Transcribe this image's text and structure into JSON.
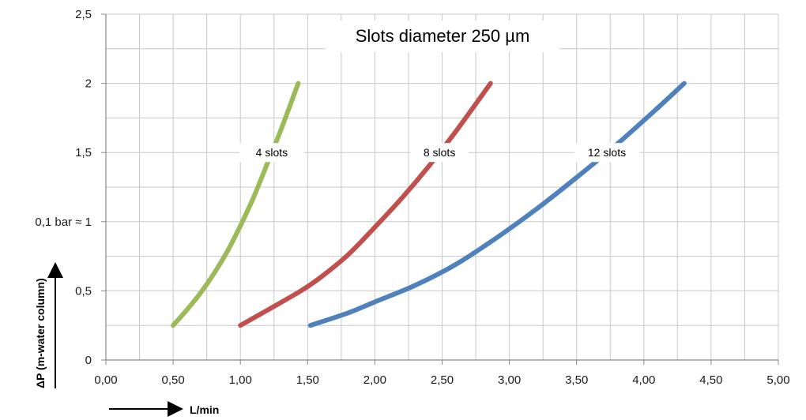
{
  "chart_data": {
    "type": "line",
    "title": "Slots diameter 250 µm",
    "xlabel": "L/min",
    "ylabel": "ΔP  (m-water column)",
    "xlim": [
      0,
      5
    ],
    "ylim": [
      0,
      2.5
    ],
    "x_ticks": [
      "0,00",
      "0,50",
      "1,00",
      "1,50",
      "2,00",
      "2,50",
      "3,00",
      "3,50",
      "4,00",
      "4,50",
      "5,00"
    ],
    "y_ticks": [
      "0",
      "0,5",
      "0,1 bar ≈ 1",
      "1,5",
      "2",
      "2,5"
    ],
    "grid": true,
    "series": [
      {
        "name": "4  slots",
        "color": "#9BBB59",
        "points": [
          [
            0.5,
            0.25
          ],
          [
            0.6,
            0.36
          ],
          [
            0.7,
            0.48
          ],
          [
            0.8,
            0.62
          ],
          [
            0.9,
            0.78
          ],
          [
            1.0,
            0.97
          ],
          [
            1.1,
            1.18
          ],
          [
            1.2,
            1.42
          ],
          [
            1.3,
            1.66
          ],
          [
            1.43,
            2.0
          ]
        ]
      },
      {
        "name": "8 slots",
        "color": "#C0504D",
        "points": [
          [
            1.0,
            0.25
          ],
          [
            1.2,
            0.36
          ],
          [
            1.45,
            0.5
          ],
          [
            1.6,
            0.6
          ],
          [
            1.8,
            0.76
          ],
          [
            2.0,
            0.96
          ],
          [
            2.2,
            1.17
          ],
          [
            2.4,
            1.4
          ],
          [
            2.6,
            1.65
          ],
          [
            2.86,
            2.0
          ]
        ]
      },
      {
        "name": "12 slots",
        "color": "#4F81BD",
        "points": [
          [
            1.52,
            0.25
          ],
          [
            1.8,
            0.34
          ],
          [
            2.0,
            0.42
          ],
          [
            2.3,
            0.54
          ],
          [
            2.6,
            0.69
          ],
          [
            2.9,
            0.88
          ],
          [
            3.2,
            1.09
          ],
          [
            3.5,
            1.32
          ],
          [
            3.8,
            1.56
          ],
          [
            4.1,
            1.82
          ],
          [
            4.3,
            2.0
          ]
        ]
      }
    ]
  }
}
